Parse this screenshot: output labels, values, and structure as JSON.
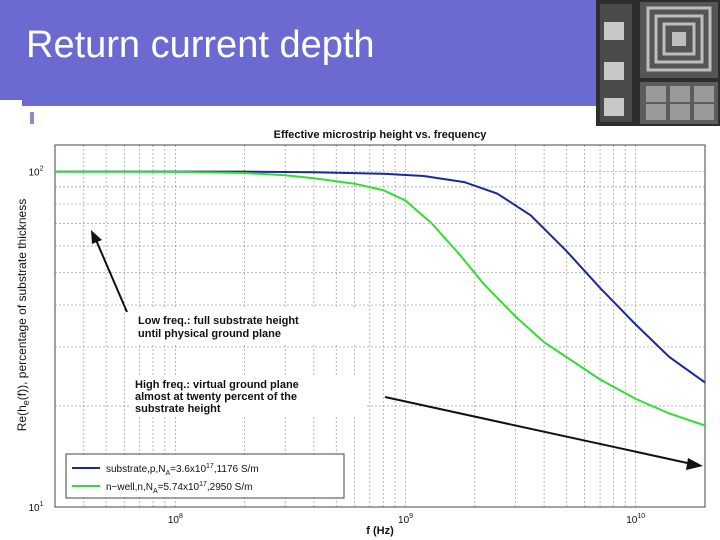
{
  "slide": {
    "title": "Return current depth",
    "accent_color": "#6a6ad0"
  },
  "chart_data": {
    "type": "line",
    "title": "Effective microstrip height vs. frequency",
    "xlabel": "f (Hz)",
    "ylabel_main": "Re(h",
    "ylabel_sub": "e",
    "ylabel_tail": "(f)), percentage of substrate thickness",
    "x_scale": "log",
    "y_scale": "log",
    "xlim": [
      30000000.0,
      20000000000.0
    ],
    "ylim": [
      10,
      120
    ],
    "x_ticks": [
      {
        "value": 100000000.0,
        "base": "10",
        "exp": "8"
      },
      {
        "value": 1000000000.0,
        "base": "10",
        "exp": "9"
      },
      {
        "value": 10000000000.0,
        "base": "10",
        "exp": "10"
      }
    ],
    "y_ticks": [
      {
        "value": 100,
        "base": "10",
        "exp": "2"
      },
      {
        "value": 10,
        "base": "10",
        "exp": "1"
      }
    ],
    "grid": true,
    "series": [
      {
        "name_pre": "substrate,p,N",
        "name_sub": "A",
        "name_mid": "=3.6x10",
        "name_sup": "17",
        "name_post": ",1176 S/m",
        "color": "#1a2a9a",
        "x": [
          30000000.0,
          100000000.0,
          200000000.0,
          400000000.0,
          800000000.0,
          1200000000.0,
          1800000000.0,
          2500000000.0,
          3500000000.0,
          5000000000.0,
          7000000000.0,
          10000000000.0,
          14000000000.0,
          20000000000.0
        ],
        "y": [
          100,
          100,
          100,
          99.5,
          98.5,
          97,
          93,
          86,
          74,
          58,
          45,
          35,
          28,
          23.5
        ]
      },
      {
        "name_pre": "n−well,n,N",
        "name_sub": "A",
        "name_mid": "=5.74x10",
        "name_sup": "17",
        "name_post": ",2950 S/m",
        "color": "#33dd33",
        "x": [
          30000000.0,
          100000000.0,
          200000000.0,
          300000000.0,
          400000000.0,
          600000000.0,
          800000000.0,
          1000000000.0,
          1300000000.0,
          1700000000.0,
          2200000000.0,
          3000000000.0,
          4000000000.0,
          5000000000.0,
          7000000000.0,
          10000000000.0,
          14000000000.0,
          20000000000.0
        ],
        "y": [
          100,
          99.8,
          99,
          97.5,
          95.5,
          92,
          88,
          82,
          70,
          57,
          46,
          37,
          31,
          28,
          24,
          21,
          19,
          17.5
        ]
      }
    ],
    "annotations": [
      {
        "line1": "Low freq.: full substrate height",
        "line2": "until physical ground plane"
      },
      {
        "line1": "High freq.: virtual ground plane",
        "line2": "almost at twenty percent of the",
        "line3": "substrate height"
      }
    ]
  }
}
